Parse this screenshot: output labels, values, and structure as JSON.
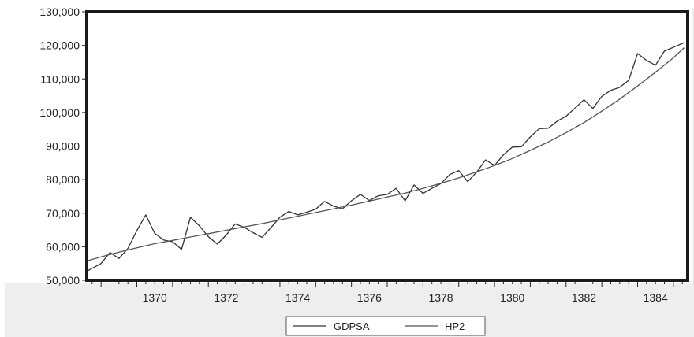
{
  "chart_data": {
    "type": "line",
    "title": "",
    "xlabel": "",
    "ylabel": "",
    "xlim": [
      1368.6,
      1385.4
    ],
    "ylim": [
      50000,
      130000
    ],
    "x_ticks": [
      1370,
      1372,
      1374,
      1376,
      1378,
      1380,
      1382,
      1384
    ],
    "x_tick_labels": [
      "1370",
      "1372",
      "1374",
      "1376",
      "1378",
      "1380",
      "1382",
      "1384"
    ],
    "y_ticks": [
      50000,
      60000,
      70000,
      80000,
      90000,
      100000,
      110000,
      120000,
      130000
    ],
    "y_tick_labels": [
      "50,000",
      "60,000",
      "70,000",
      "80,000",
      "90,000",
      "100,000",
      "110,000",
      "120,000",
      "130,000"
    ],
    "grid": false,
    "legend_position": "bottom-center",
    "series": [
      {
        "name": "GDPSA",
        "color": "#333333",
        "points": [
          [
            1368.62,
            52800
          ],
          [
            1369.0,
            55000
          ],
          [
            1369.25,
            58300
          ],
          [
            1369.5,
            56500
          ],
          [
            1369.75,
            59500
          ],
          [
            1370.0,
            64800
          ],
          [
            1370.25,
            69500
          ],
          [
            1370.5,
            64000
          ],
          [
            1370.75,
            62000
          ],
          [
            1371.0,
            61500
          ],
          [
            1371.25,
            59200
          ],
          [
            1371.5,
            68800
          ],
          [
            1371.75,
            66200
          ],
          [
            1372.0,
            63000
          ],
          [
            1372.25,
            60800
          ],
          [
            1372.5,
            63500
          ],
          [
            1372.75,
            66800
          ],
          [
            1373.0,
            65800
          ],
          [
            1373.25,
            64200
          ],
          [
            1373.5,
            62800
          ],
          [
            1373.75,
            65700
          ],
          [
            1374.0,
            68800
          ],
          [
            1374.25,
            70500
          ],
          [
            1374.5,
            69500
          ],
          [
            1374.75,
            70300
          ],
          [
            1375.0,
            71200
          ],
          [
            1375.25,
            73500
          ],
          [
            1375.5,
            72100
          ],
          [
            1375.75,
            71300
          ],
          [
            1376.0,
            73700
          ],
          [
            1376.25,
            75600
          ],
          [
            1376.5,
            73800
          ],
          [
            1376.75,
            75200
          ],
          [
            1377.0,
            75600
          ],
          [
            1377.25,
            77400
          ],
          [
            1377.5,
            73700
          ],
          [
            1377.75,
            78400
          ],
          [
            1378.0,
            75900
          ],
          [
            1378.25,
            77400
          ],
          [
            1378.5,
            78800
          ],
          [
            1378.75,
            81500
          ],
          [
            1379.0,
            82700
          ],
          [
            1379.25,
            79400
          ],
          [
            1379.5,
            82200
          ],
          [
            1379.75,
            85900
          ],
          [
            1380.0,
            84200
          ],
          [
            1380.25,
            87400
          ],
          [
            1380.5,
            89700
          ],
          [
            1380.75,
            89800
          ],
          [
            1381.0,
            92700
          ],
          [
            1381.25,
            95200
          ],
          [
            1381.5,
            95300
          ],
          [
            1381.75,
            97400
          ],
          [
            1382.0,
            98900
          ],
          [
            1382.25,
            101300
          ],
          [
            1382.5,
            103800
          ],
          [
            1382.75,
            101200
          ],
          [
            1383.0,
            104800
          ],
          [
            1383.25,
            106600
          ],
          [
            1383.5,
            107500
          ],
          [
            1383.75,
            109600
          ],
          [
            1384.0,
            117600
          ],
          [
            1384.25,
            115500
          ],
          [
            1384.5,
            114100
          ],
          [
            1384.75,
            118300
          ],
          [
            1385.3,
            120800
          ]
        ]
      },
      {
        "name": "HP2",
        "color": "#555555",
        "points": [
          [
            1368.62,
            55800
          ],
          [
            1369.0,
            57000
          ],
          [
            1369.5,
            58400
          ],
          [
            1370.0,
            59700
          ],
          [
            1370.5,
            60900
          ],
          [
            1371.0,
            61900
          ],
          [
            1371.5,
            62900
          ],
          [
            1372.0,
            63900
          ],
          [
            1372.5,
            64900
          ],
          [
            1373.0,
            65900
          ],
          [
            1373.5,
            66900
          ],
          [
            1374.0,
            68000
          ],
          [
            1374.5,
            69100
          ],
          [
            1375.0,
            70200
          ],
          [
            1375.5,
            71300
          ],
          [
            1376.0,
            72400
          ],
          [
            1376.5,
            73600
          ],
          [
            1377.0,
            74800
          ],
          [
            1377.5,
            76000
          ],
          [
            1378.0,
            77400
          ],
          [
            1378.5,
            78900
          ],
          [
            1379.0,
            80500
          ],
          [
            1379.5,
            82300
          ],
          [
            1380.0,
            84200
          ],
          [
            1380.5,
            86300
          ],
          [
            1381.0,
            88700
          ],
          [
            1381.5,
            91200
          ],
          [
            1382.0,
            94000
          ],
          [
            1382.5,
            97000
          ],
          [
            1383.0,
            100400
          ],
          [
            1383.5,
            104000
          ],
          [
            1384.0,
            107900
          ],
          [
            1384.5,
            112000
          ],
          [
            1385.0,
            116300
          ],
          [
            1385.3,
            119300
          ]
        ]
      }
    ]
  }
}
